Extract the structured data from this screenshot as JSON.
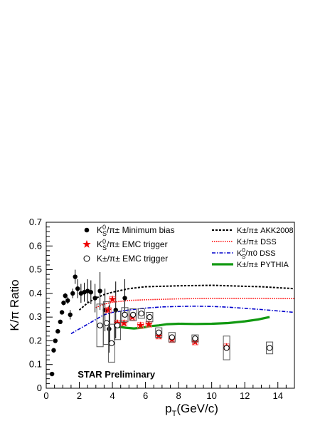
{
  "chart_data": {
    "type": "scatter",
    "title": "",
    "xlabel_main": "p",
    "xlabel_sub": "T",
    "xlabel_unit": "(GeV/c)",
    "ylabel": "K/π Ratio",
    "xlim": [
      0,
      15
    ],
    "ylim": [
      0,
      0.7
    ],
    "xticks": [
      0,
      2,
      4,
      6,
      8,
      10,
      12,
      14
    ],
    "yticks": [
      0,
      0.1,
      0.2,
      0.3,
      0.4,
      0.5,
      0.6,
      0.7
    ],
    "ytick_labels": [
      "0",
      "0.1",
      "0.2",
      "0.3",
      "0.4",
      "0.5",
      "0.6",
      "0.7"
    ],
    "annotation": "STAR Preliminary",
    "legend_left": [
      {
        "marker": "dot",
        "text_main": "K",
        "text_sup": "0",
        "text_sub": "S",
        "text_rest": "/π± Minimum bias"
      },
      {
        "marker": "star",
        "text_main": "K",
        "text_sup": "0",
        "text_sub": "S",
        "text_rest": "/π± EMC trigger"
      },
      {
        "marker": "circle",
        "text_main": "K±/π± EMC trigger",
        "text_sup": "",
        "text_sub": "",
        "text_rest": ""
      }
    ],
    "legend_right": [
      {
        "style": "akk",
        "text_main": "K±/π± AKK2008",
        "text_sup": "",
        "text_sub": "",
        "text_rest": ""
      },
      {
        "style": "dss_red",
        "text_main": "K±/π± DSS",
        "text_sup": "",
        "text_sub": "",
        "text_rest": ""
      },
      {
        "style": "dss_blue",
        "text_main": "K",
        "text_sup": "0",
        "text_sub": "S",
        "text_rest": "/π0 DSS"
      },
      {
        "style": "pythia",
        "text_main": "K±/π± PYTHIA",
        "text_sup": "",
        "text_sub": "",
        "text_rest": ""
      }
    ],
    "series": [
      {
        "name": "minbias",
        "marker": "dot",
        "points": [
          {
            "x": 0.35,
            "y": 0.06,
            "err": 0.005
          },
          {
            "x": 0.45,
            "y": 0.16,
            "err": 0.005
          },
          {
            "x": 0.55,
            "y": 0.2,
            "err": 0.005
          },
          {
            "x": 0.7,
            "y": 0.24,
            "err": 0.007
          },
          {
            "x": 0.85,
            "y": 0.28,
            "err": 0.007
          },
          {
            "x": 0.95,
            "y": 0.32,
            "err": 0.008
          },
          {
            "x": 1.05,
            "y": 0.36,
            "err": 0.01
          },
          {
            "x": 1.15,
            "y": 0.39,
            "err": 0.012
          },
          {
            "x": 1.3,
            "y": 0.37,
            "err": 0.015
          },
          {
            "x": 1.45,
            "y": 0.31,
            "err": 0.02
          },
          {
            "x": 1.6,
            "y": 0.4,
            "err": 0.02
          },
          {
            "x": 1.75,
            "y": 0.47,
            "err": 0.03
          },
          {
            "x": 1.9,
            "y": 0.42,
            "err": 0.04
          },
          {
            "x": 2.1,
            "y": 0.4,
            "err": 0.04
          },
          {
            "x": 2.3,
            "y": 0.405,
            "err": 0.04
          },
          {
            "x": 2.5,
            "y": 0.41,
            "err": 0.05
          },
          {
            "x": 2.7,
            "y": 0.405,
            "err": 0.05
          },
          {
            "x": 2.95,
            "y": 0.38,
            "err": 0.06
          },
          {
            "x": 3.25,
            "y": 0.41,
            "err": 0.08
          },
          {
            "x": 3.55,
            "y": 0.33,
            "err": 0.09
          },
          {
            "x": 3.8,
            "y": 0.25,
            "err": 0.1
          },
          {
            "x": 4.2,
            "y": 0.33,
            "err": 0.12
          },
          {
            "x": 4.75,
            "y": 0.38,
            "err": 0.08
          }
        ]
      },
      {
        "name": "emc_k0s",
        "marker": "star",
        "points": [
          {
            "x": 3.75,
            "y": 0.33,
            "sys": 0.01
          },
          {
            "x": 4.0,
            "y": 0.375,
            "sys": 0.012
          },
          {
            "x": 4.3,
            "y": 0.275,
            "sys": 0.012
          },
          {
            "x": 4.7,
            "y": 0.275,
            "sys": 0.012
          },
          {
            "x": 5.2,
            "y": 0.3,
            "sys": 0.012
          },
          {
            "x": 5.7,
            "y": 0.265,
            "sys": 0.012
          },
          {
            "x": 6.2,
            "y": 0.27,
            "sys": 0.012
          },
          {
            "x": 6.8,
            "y": 0.22,
            "sys": 0.012
          },
          {
            "x": 7.6,
            "y": 0.205,
            "sys": 0.012
          },
          {
            "x": 9.0,
            "y": 0.195,
            "sys": 0.012
          },
          {
            "x": 10.9,
            "y": 0.175,
            "sys": 0.012
          }
        ]
      },
      {
        "name": "emc_kpm",
        "marker": "circle",
        "points": [
          {
            "x": 3.25,
            "y": 0.265,
            "sys": 0.09
          },
          {
            "x": 3.65,
            "y": 0.275,
            "sys": 0.09
          },
          {
            "x": 3.95,
            "y": 0.19,
            "sys": 0.08
          },
          {
            "x": 4.3,
            "y": 0.265,
            "sys": 0.06
          },
          {
            "x": 4.75,
            "y": 0.31,
            "sys": 0.03
          },
          {
            "x": 5.25,
            "y": 0.31,
            "sys": 0.025
          },
          {
            "x": 5.75,
            "y": 0.315,
            "sys": 0.02
          },
          {
            "x": 6.25,
            "y": 0.3,
            "sys": 0.02
          },
          {
            "x": 6.8,
            "y": 0.235,
            "sys": 0.02
          },
          {
            "x": 7.6,
            "y": 0.215,
            "sys": 0.02
          },
          {
            "x": 9.0,
            "y": 0.21,
            "sys": 0.015
          },
          {
            "x": 10.9,
            "y": 0.17,
            "sys": 0.05
          },
          {
            "x": 13.5,
            "y": 0.17,
            "sys": 0.025
          }
        ]
      },
      {
        "name": "akk2008",
        "style": "akk",
        "color": "#000000",
        "points": [
          [
            2,
            0.33
          ],
          [
            2.5,
            0.36
          ],
          [
            3,
            0.38
          ],
          [
            3.5,
            0.395
          ],
          [
            4,
            0.405
          ],
          [
            5,
            0.42
          ],
          [
            6,
            0.428
          ],
          [
            7,
            0.43
          ],
          [
            8,
            0.432
          ],
          [
            9,
            0.433
          ],
          [
            10,
            0.434
          ],
          [
            11,
            0.432
          ],
          [
            12,
            0.43
          ],
          [
            13,
            0.428
          ],
          [
            14,
            0.424
          ],
          [
            15,
            0.42
          ]
        ]
      },
      {
        "name": "dss_kpm",
        "style": "dss_red",
        "color": "#ff0000",
        "points": [
          [
            3,
            0.34
          ],
          [
            3.5,
            0.355
          ],
          [
            4,
            0.363
          ],
          [
            5,
            0.37
          ],
          [
            6,
            0.373
          ],
          [
            7,
            0.375
          ],
          [
            8,
            0.377
          ],
          [
            9,
            0.378
          ],
          [
            10,
            0.379
          ],
          [
            11,
            0.379
          ],
          [
            12,
            0.379
          ],
          [
            13,
            0.379
          ],
          [
            14,
            0.378
          ],
          [
            15,
            0.378
          ]
        ]
      },
      {
        "name": "dss_k0s",
        "style": "dss_blue",
        "color": "#0000cc",
        "points": [
          [
            1.5,
            0.23
          ],
          [
            2,
            0.25
          ],
          [
            2.5,
            0.27
          ],
          [
            3,
            0.29
          ],
          [
            3.5,
            0.31
          ],
          [
            4,
            0.32
          ],
          [
            5,
            0.33
          ],
          [
            6,
            0.338
          ],
          [
            7,
            0.343
          ],
          [
            8,
            0.345
          ],
          [
            9,
            0.346
          ],
          [
            10,
            0.345
          ],
          [
            11,
            0.342
          ],
          [
            12,
            0.337
          ],
          [
            13,
            0.332
          ],
          [
            14,
            0.326
          ],
          [
            15,
            0.32
          ]
        ]
      },
      {
        "name": "pythia",
        "style": "pythia",
        "color": "#119911",
        "points": [
          [
            4.3,
            0.26
          ],
          [
            4.8,
            0.255
          ],
          [
            5.3,
            0.252
          ],
          [
            5.8,
            0.255
          ],
          [
            6.3,
            0.262
          ],
          [
            6.8,
            0.265
          ],
          [
            7.3,
            0.27
          ],
          [
            8,
            0.272
          ],
          [
            9,
            0.271
          ],
          [
            10,
            0.272
          ],
          [
            11,
            0.275
          ],
          [
            12,
            0.282
          ],
          [
            12.8,
            0.29
          ],
          [
            13.5,
            0.3
          ]
        ]
      }
    ]
  }
}
